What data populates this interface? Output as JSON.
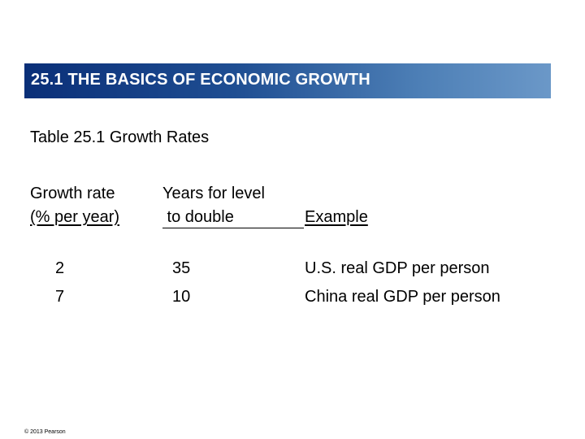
{
  "header": {
    "title": "25.1  THE BASICS OF ECONOMIC GROWTH"
  },
  "caption": "Table 25.1 Growth Rates",
  "table": {
    "headers": {
      "growth_rate": [
        "Growth rate",
        "(% per year)"
      ],
      "years_to_double": [
        "Years for level",
        " to double"
      ],
      "example": "Example"
    },
    "rows": [
      {
        "growth_rate": "2",
        "years_to_double": "35",
        "example": "U.S. real GDP per person"
      },
      {
        "growth_rate": "7",
        "years_to_double": "10",
        "example": "China real GDP per person"
      }
    ]
  },
  "footer": {
    "copyright": "© 2013 Pearson"
  },
  "colors": {
    "header_start": "#0a2f78",
    "header_end": "#6b98c8",
    "header_text": "#ffffff"
  }
}
